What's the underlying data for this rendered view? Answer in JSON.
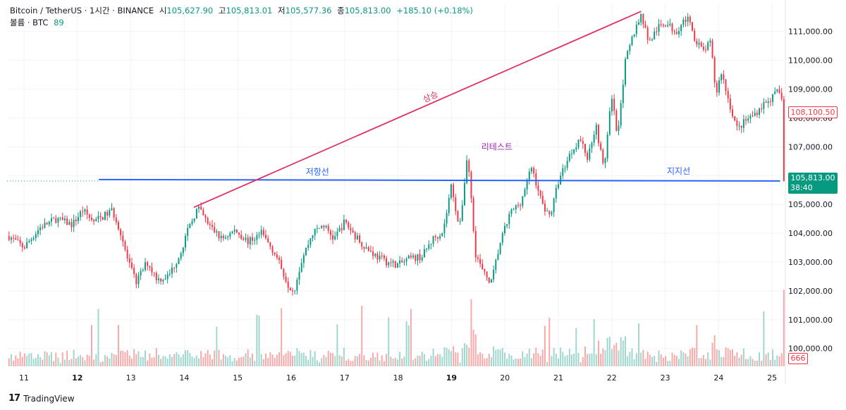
{
  "header": {
    "symbol": "Bitcoin / TetherUS · 1시간 · BINANCE",
    "open_label": "시",
    "open": "105,627.90",
    "high_label": "고",
    "high": "105,813.01",
    "low_label": "저",
    "low": "105,577.36",
    "close_label": "종",
    "close": "105,813.00",
    "change": "+185.10 (+0.18%)",
    "volume_label": "볼륨 · BTC",
    "volume": "89"
  },
  "price_tags": {
    "last_price": "105,813.00",
    "countdown": "38:40",
    "prior_price": "108,100.50",
    "volume_tag": "666"
  },
  "brand": "TradingView",
  "colors": {
    "up": "#089981",
    "down": "#f23645",
    "up_vol": "#9fd6cd",
    "down_vol": "#f7a9a9",
    "support": "#2962ff",
    "trend": "#e0305f",
    "retest": "#9c27b0"
  },
  "chart_data": {
    "type": "candlestick",
    "ylim": [
      99700,
      111800
    ],
    "yticks": [
      "111,000.00",
      "110,000.00",
      "109,000.00",
      "108,000.00",
      "107,000.00",
      "106,000.00",
      "105,000.00",
      "104,000.00",
      "103,000.00",
      "102,000.00",
      "101,000.00",
      "100,000.00"
    ],
    "ytick_values": [
      111000,
      110000,
      109000,
      108000,
      107000,
      106000,
      105000,
      104000,
      103000,
      102000,
      101000,
      100000
    ],
    "xticks": [
      {
        "label": "11",
        "day": 11,
        "bold": false
      },
      {
        "label": "12",
        "day": 12,
        "bold": true
      },
      {
        "label": "13",
        "day": 13,
        "bold": false
      },
      {
        "label": "14",
        "day": 14,
        "bold": false
      },
      {
        "label": "15",
        "day": 15,
        "bold": false
      },
      {
        "label": "16",
        "day": 16,
        "bold": false
      },
      {
        "label": "17",
        "day": 17,
        "bold": false
      },
      {
        "label": "18",
        "day": 18,
        "bold": false
      },
      {
        "label": "19",
        "day": 19,
        "bold": true
      },
      {
        "label": "20",
        "day": 20,
        "bold": false
      },
      {
        "label": "21",
        "day": 21,
        "bold": false
      },
      {
        "label": "22",
        "day": 22,
        "bold": false
      },
      {
        "label": "23",
        "day": 23,
        "bold": false
      },
      {
        "label": "24",
        "day": 24,
        "bold": false
      },
      {
        "label": "25",
        "day": 25,
        "bold": false
      }
    ],
    "x_start_day": 10.7,
    "x_end_day": 25.25,
    "close_anchors": [
      [
        10.72,
        103900
      ],
      [
        11.0,
        103500
      ],
      [
        11.3,
        104200
      ],
      [
        11.6,
        104500
      ],
      [
        11.9,
        104300
      ],
      [
        12.1,
        104800
      ],
      [
        12.3,
        104400
      ],
      [
        12.5,
        104600
      ],
      [
        12.65,
        104800
      ],
      [
        12.8,
        104100
      ],
      [
        12.95,
        103000
      ],
      [
        13.1,
        102300
      ],
      [
        13.3,
        103000
      ],
      [
        13.5,
        102400
      ],
      [
        13.7,
        102500
      ],
      [
        13.9,
        103200
      ],
      [
        14.05,
        104000
      ],
      [
        14.25,
        104900
      ],
      [
        14.45,
        104300
      ],
      [
        14.7,
        103800
      ],
      [
        14.95,
        104100
      ],
      [
        15.2,
        103700
      ],
      [
        15.45,
        104000
      ],
      [
        15.7,
        103300
      ],
      [
        15.95,
        102200
      ],
      [
        16.05,
        102000
      ],
      [
        16.2,
        103100
      ],
      [
        16.4,
        104000
      ],
      [
        16.6,
        104300
      ],
      [
        16.8,
        103800
      ],
      [
        17.0,
        104400
      ],
      [
        17.2,
        103900
      ],
      [
        17.4,
        103500
      ],
      [
        17.6,
        103200
      ],
      [
        17.8,
        103000
      ],
      [
        18.0,
        102900
      ],
      [
        18.2,
        103100
      ],
      [
        18.45,
        103200
      ],
      [
        18.65,
        103800
      ],
      [
        18.85,
        104100
      ],
      [
        19.0,
        105700
      ],
      [
        19.15,
        104100
      ],
      [
        19.3,
        106800
      ],
      [
        19.45,
        103300
      ],
      [
        19.6,
        102600
      ],
      [
        19.75,
        102300
      ],
      [
        19.9,
        103600
      ],
      [
        20.1,
        104700
      ],
      [
        20.3,
        105100
      ],
      [
        20.5,
        106300
      ],
      [
        20.7,
        105000
      ],
      [
        20.85,
        104600
      ],
      [
        21.0,
        105800
      ],
      [
        21.2,
        106700
      ],
      [
        21.4,
        107300
      ],
      [
        21.55,
        106600
      ],
      [
        21.7,
        107800
      ],
      [
        21.85,
        106200
      ],
      [
        22.0,
        108800
      ],
      [
        22.1,
        107400
      ],
      [
        22.25,
        109900
      ],
      [
        22.4,
        110900
      ],
      [
        22.55,
        111600
      ],
      [
        22.7,
        110600
      ],
      [
        22.85,
        111100
      ],
      [
        23.0,
        111300
      ],
      [
        23.2,
        111000
      ],
      [
        23.4,
        111500
      ],
      [
        23.55,
        110800
      ],
      [
        23.7,
        110300
      ],
      [
        23.85,
        110600
      ],
      [
        23.95,
        108800
      ],
      [
        24.05,
        109600
      ],
      [
        24.2,
        108500
      ],
      [
        24.35,
        107600
      ],
      [
        24.5,
        107900
      ],
      [
        24.65,
        108100
      ],
      [
        24.85,
        108500
      ],
      [
        25.0,
        108700
      ],
      [
        25.1,
        108900
      ],
      [
        25.2,
        108700
      ],
      [
        25.22,
        105813
      ]
    ],
    "candle_count": 348,
    "support_line": {
      "label": "지지선",
      "y": 105813
    },
    "resistance_line": {
      "label": "저항선",
      "y": 105813,
      "from_day": 12.4,
      "to_day": 25.15
    },
    "trend_line": {
      "label": "상승",
      "from": [
        14.18,
        104900
      ],
      "to": [
        22.55,
        111700
      ]
    },
    "retest": {
      "label": "리테스트",
      "day": 19.85
    },
    "resistance_label_day": 15.7,
    "support_label_day": 23.25
  }
}
